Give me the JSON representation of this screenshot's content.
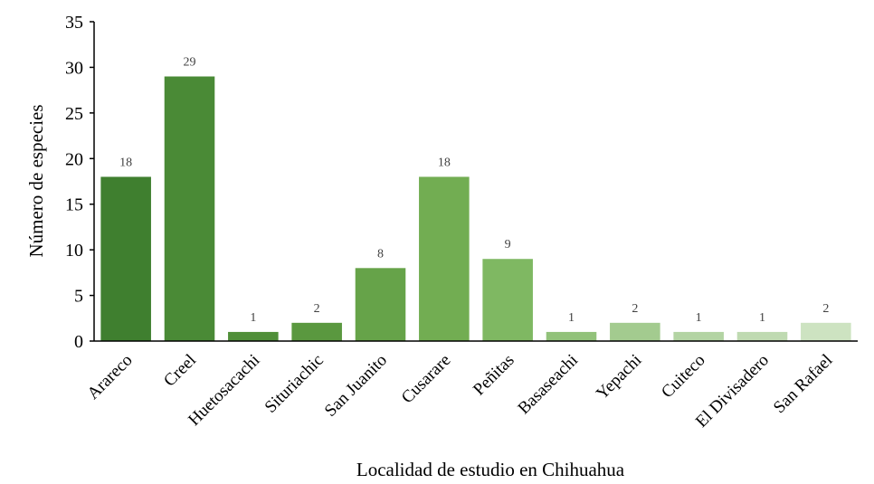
{
  "chart_data": {
    "type": "bar",
    "title": "",
    "xlabel": "Localidad de estudio en Chihuahua",
    "ylabel": "Número de especies",
    "ylim": [
      0,
      35
    ],
    "yticks": [
      0,
      5,
      10,
      15,
      20,
      25,
      30,
      35
    ],
    "grid": false,
    "legend": "none",
    "categories": [
      "Arareco",
      "Creel",
      "Huetosacachi",
      "Situriachic",
      "San Juanito",
      "Cusarare",
      "Peñitas",
      "Basaseachi",
      "Yepachi",
      "Cuiteco",
      "El Divisadero",
      "San Rafael"
    ],
    "values": [
      18,
      29,
      1,
      2,
      8,
      18,
      9,
      1,
      2,
      1,
      1,
      2
    ],
    "colors": [
      "#3f7f2f",
      "#4a8a36",
      "#508f39",
      "#5a983f",
      "#66a349",
      "#72ad52",
      "#7fb862",
      "#92c27a",
      "#a3cb8f",
      "#b3d4a3",
      "#bfdab1",
      "#cde3c1"
    ]
  }
}
